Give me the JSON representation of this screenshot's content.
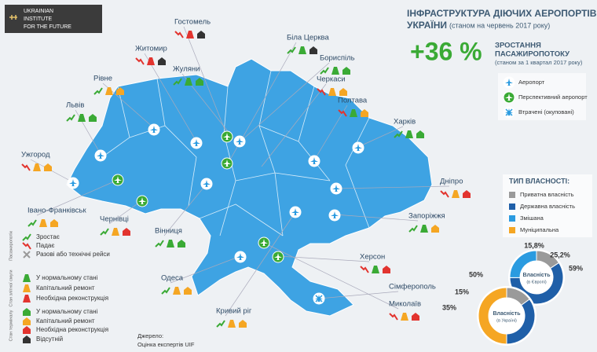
{
  "header": {
    "org": [
      "UKRAINIAN",
      "INSTITUTE",
      "FOR THE FUTURE"
    ],
    "title": "ІНФРАСТРУКТУРА ДІЮЧИХ АЕРОПОРТІВ",
    "title2": "УКРАЇНИ",
    "subtitle": "(станом на червень 2017 року)"
  },
  "growth": {
    "value": "+36 %",
    "label": [
      "ЗРОСТАННЯ",
      "ПАСАЖИРОПОТОКУ"
    ],
    "note": "(станом за 1 квартал 2017 року)"
  },
  "airport_legend": [
    "Аеропорт",
    "Перспективний аеропорт",
    "Втрачені (окуповані)"
  ],
  "cities": [
    "Гостомель",
    "Біла Церква",
    "Житомир",
    "Бориспіль",
    "Жуляни",
    "Черкаси",
    "Рівне",
    "Полтава",
    "Львів",
    "Харків",
    "Ужгород",
    "Дніпро",
    "Івано-Франківськ",
    "Чернівці",
    "Запоріжжя",
    "Вінниця",
    "Одеса",
    "Херсон",
    "Сімферополь",
    "Миколаїв",
    "Кривий ріг"
  ],
  "legend": {
    "groups": [
      {
        "title": "Пасажиропотік",
        "items": [
          "Зростає",
          "Падає",
          "Разові або технічні рейси"
        ]
      },
      {
        "title": "Стан злітної смуги",
        "items": [
          "У нормальному стані",
          "Капітальний ремонт",
          "Необхідна реконструкція"
        ]
      },
      {
        "title": "Стан терміналу",
        "items": [
          "У нормальному стані",
          "Капітальний ремонт",
          "Необхідна реконструкція",
          "Відсутній"
        ]
      }
    ]
  },
  "source": [
    "Джерело:",
    "Оцінка експертів UIF"
  ],
  "chart_data": [
    {
      "type": "pie",
      "legend_title": "ТИП ВЛАСНОСТІ:",
      "categories": [
        "Приватна власність",
        "Державна власність",
        "Змішана",
        "Муніципальна"
      ],
      "colors": [
        "#9a9a9a",
        "#1f5fa8",
        "#2b9be0",
        "#f5a623"
      ],
      "values": [
        15.8,
        59,
        25.2,
        null
      ],
      "value_labels": [
        "15,8%",
        "59%",
        "25,2%",
        null
      ],
      "center_label": "Власність",
      "center_sublabel": "(в Європі)"
    },
    {
      "type": "pie",
      "colors": [
        "#9a9a9a",
        "#1f5fa8",
        "#2b9be0",
        "#f5a623"
      ],
      "values": [
        15,
        35,
        null,
        50
      ],
      "value_labels": [
        "15%",
        "35%",
        null,
        "50%"
      ],
      "center_label": "Власність",
      "center_sublabel": "(в Україні)"
    }
  ]
}
